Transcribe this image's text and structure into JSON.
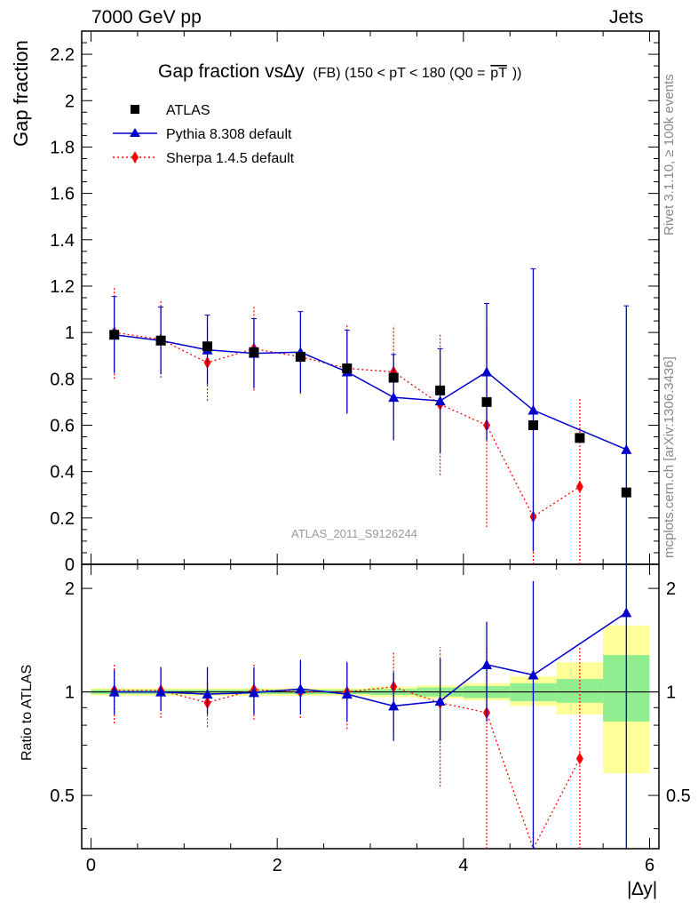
{
  "header": {
    "left": "7000 GeV pp",
    "right": "Jets"
  },
  "side_labels": {
    "rivet": "Rivet 3.1.10, ≥ 100k events",
    "mcplots": "mcplots.cern.ch [arXiv:1306.3436]"
  },
  "legend": {
    "title_main": "Gap fraction vs∆y",
    "title_sub": "(FB) (150 < pT < 180 (Q0 =",
    "title_ptbar": "pT",
    "title_end": "))",
    "entries": [
      "ATLAS",
      "Pythia 8.308 default",
      "Sherpa 1.4.5 default"
    ]
  },
  "watermark": "ATLAS_2011_S9126244",
  "axes": {
    "ylabel_main": "Gap fraction",
    "ylabel_ratio": "Ratio to ATLAS",
    "xlabel": "|∆y|"
  },
  "colors": {
    "atlas": "#000000",
    "pythia": "#0000cc",
    "sherpa": "#ff0000",
    "band_inner": "#90ee90",
    "band_outer": "#ffff99"
  },
  "chart_data": [
    {
      "type": "scatter",
      "title": "Gap fraction vs∆y (FB) (150 < pT < 180 (Q0 = pT))",
      "xlabel": "|∆y|",
      "ylabel": "Gap fraction",
      "xlim": [
        -0.1,
        6.1
      ],
      "ylim": [
        0,
        2.3
      ],
      "yticks": [
        0,
        0.2,
        0.4,
        0.6,
        0.8,
        1,
        1.2,
        1.4,
        1.6,
        1.8,
        2,
        2.2
      ],
      "xticks": [
        0,
        2,
        4,
        6
      ],
      "x": [
        0.25,
        0.75,
        1.25,
        1.75,
        2.25,
        2.75,
        3.25,
        3.75,
        4.25,
        4.75,
        5.25,
        5.75
      ],
      "series": [
        {
          "name": "ATLAS",
          "values": [
            0.99,
            0.965,
            0.94,
            0.915,
            0.895,
            0.845,
            0.805,
            0.75,
            0.7,
            0.6,
            0.545,
            0.31
          ]
        },
        {
          "name": "Pythia 8.308 default",
          "values": [
            0.99,
            0.965,
            0.925,
            0.91,
            0.915,
            0.83,
            0.72,
            0.705,
            0.83,
            0.665,
            null,
            0.495
          ],
          "err": [
            0.165,
            0.145,
            0.15,
            0.15,
            0.175,
            0.18,
            0.185,
            0.225,
            0.295,
            0.61,
            null,
            0.62
          ]
        },
        {
          "name": "Sherpa 1.4.5 default",
          "values": [
            1.0,
            0.97,
            0.87,
            0.93,
            0.895,
            0.845,
            0.83,
            0.69,
            0.6,
            0.205,
            0.335,
            null
          ],
          "err": [
            0.2,
            0.165,
            0.165,
            0.18,
            0.16,
            0.19,
            0.2,
            0.305,
            0.44,
            0.215,
            0.385,
            null
          ]
        }
      ]
    },
    {
      "type": "scatter",
      "ylabel": "Ratio to ATLAS",
      "xlabel": "|∆y|",
      "xlim": [
        -0.1,
        6.1
      ],
      "ylim": [
        0.35,
        2.35
      ],
      "ylog": true,
      "yticks": [
        0.5,
        1,
        2
      ],
      "x": [
        0.25,
        0.75,
        1.25,
        1.75,
        2.25,
        2.75,
        3.25,
        3.75,
        4.25,
        4.75,
        5.25,
        5.75
      ],
      "band_inner": [
        [
          0.985,
          1.015
        ],
        [
          0.985,
          1.015
        ],
        [
          0.985,
          1.015
        ],
        [
          0.985,
          1.015
        ],
        [
          0.985,
          1.015
        ],
        [
          0.985,
          1.015
        ],
        [
          0.98,
          1.02
        ],
        [
          0.97,
          1.03
        ],
        [
          0.96,
          1.04
        ],
        [
          0.94,
          1.06
        ],
        [
          0.93,
          1.09
        ],
        [
          0.82,
          1.28
        ]
      ],
      "band_outer": [
        [
          0.975,
          1.025
        ],
        [
          0.975,
          1.025
        ],
        [
          0.975,
          1.025
        ],
        [
          0.975,
          1.025
        ],
        [
          0.975,
          1.025
        ],
        [
          0.975,
          1.025
        ],
        [
          0.965,
          1.035
        ],
        [
          0.955,
          1.045
        ],
        [
          0.945,
          1.06
        ],
        [
          0.91,
          1.11
        ],
        [
          0.86,
          1.22
        ],
        [
          0.58,
          1.56
        ]
      ],
      "series": [
        {
          "name": "Pythia 8.308 default",
          "values": [
            1.0,
            1.0,
            0.985,
            0.995,
            1.02,
            0.985,
            0.91,
            0.94,
            1.2,
            1.12,
            null,
            1.7
          ],
          "lo": [
            0.86,
            0.88,
            0.86,
            0.86,
            0.86,
            0.82,
            0.72,
            0.72,
            0.82,
            0.35,
            null,
            0.35
          ],
          "hi": [
            1.16,
            1.18,
            1.18,
            1.18,
            1.24,
            1.22,
            1.14,
            1.25,
            1.6,
            2.1,
            null,
            2.35
          ]
        },
        {
          "name": "Sherpa 1.4.5 default",
          "values": [
            1.01,
            1.01,
            0.93,
            1.015,
            1.0,
            1.0,
            1.035,
            0.93,
            0.87,
            0.34,
            0.64,
            null
          ],
          "lo": [
            0.81,
            0.84,
            0.79,
            0.83,
            0.84,
            0.78,
            0.78,
            0.53,
            0.35,
            0.35,
            0.35,
            null
          ],
          "hi": [
            1.21,
            1.18,
            1.1,
            1.2,
            1.18,
            1.23,
            1.3,
            1.35,
            1.37,
            0.39,
            1.35,
            null
          ]
        }
      ]
    }
  ]
}
